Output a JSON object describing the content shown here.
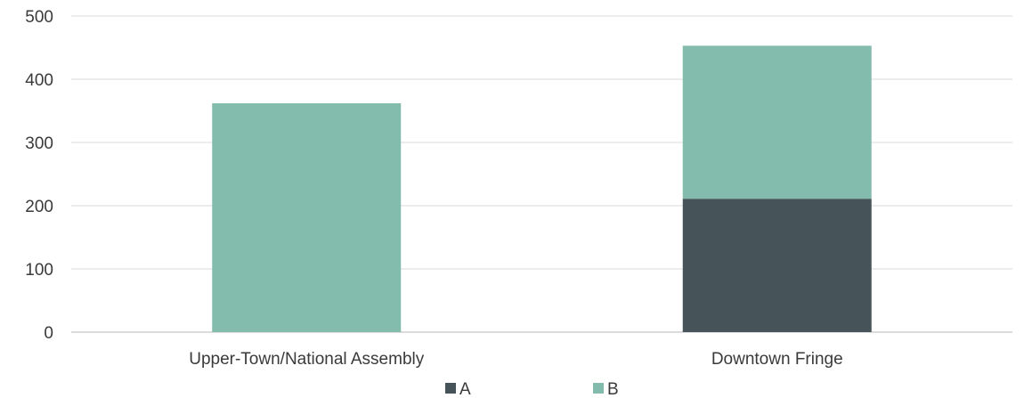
{
  "chart_data": {
    "type": "bar",
    "stacked": true,
    "categories": [
      "Upper-Town/National Assembly",
      "Downtown Fringe"
    ],
    "series": [
      {
        "name": "A",
        "values": [
          0,
          211
        ],
        "color": "#465459"
      },
      {
        "name": "B",
        "values": [
          362,
          242
        ],
        "color": "#83bbad"
      }
    ],
    "ylim": [
      0,
      500
    ],
    "yticks": [
      "0",
      "100",
      "200",
      "300",
      "400",
      "500"
    ],
    "grid": true,
    "legend": "bottom"
  }
}
